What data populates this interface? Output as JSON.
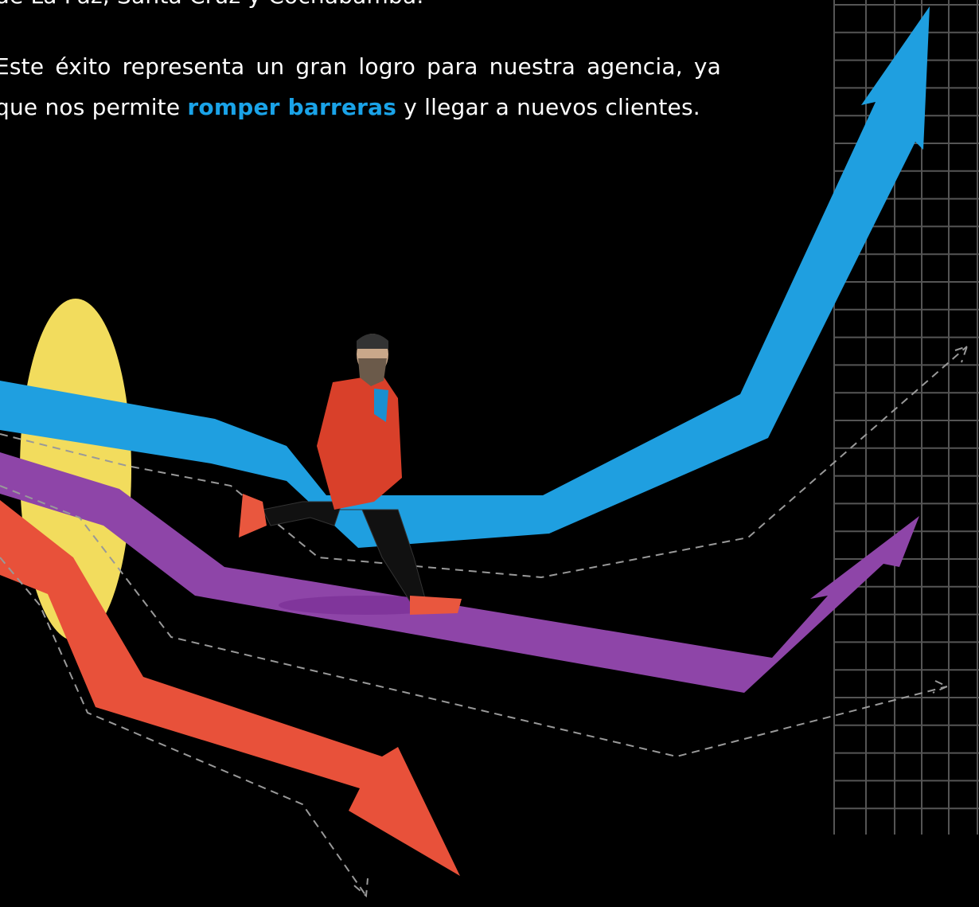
{
  "paragraphs": [
    {
      "text": "de La Paz, Santa Cruz y Cochabamba."
    },
    {
      "before": "Este éxito representa un gran logro para nuestra agencia, ya que nos permite",
      "highlight": "romper barreras",
      "after": "y llegar a nuevos clientes."
    }
  ]
}
